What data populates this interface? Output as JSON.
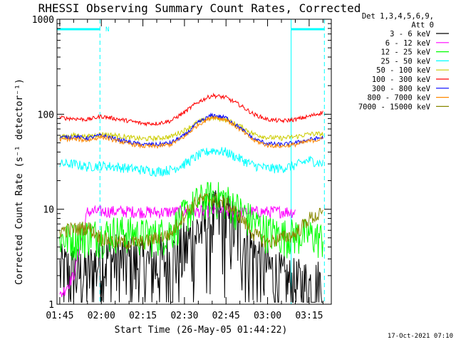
{
  "chart_data": {
    "type": "line",
    "title": "RHESSI Observing Summary Count Rates, Corrected",
    "xlabel": "Start Time (26-May-05 01:44:22)",
    "ylabel": "Corrected Count Rate (s⁻¹ detector⁻¹)",
    "yscale": "log",
    "ylim": [
      1,
      1000
    ],
    "xlim_minutes_after_0145": [
      -1,
      98
    ],
    "x_tick_labels": [
      "01:45",
      "02:00",
      "02:15",
      "02:30",
      "02:45",
      "03:00",
      "03:15"
    ],
    "x_tick_minutes": [
      0,
      15,
      30,
      45,
      60,
      75,
      90
    ],
    "y_tick_labels": [
      "1",
      "10",
      "100",
      "1000"
    ],
    "y_tick_values": [
      1,
      10,
      100,
      1000
    ],
    "legend_header": [
      "Det 1,3,4,5,6,9,",
      "Att 0"
    ],
    "legend_position": "right",
    "footer_timestamp": "17-Oct-2021 07:10",
    "night_flag": "N",
    "x_minutes": [
      0,
      5,
      10,
      15,
      20,
      25,
      30,
      35,
      40,
      45,
      50,
      55,
      60,
      65,
      70,
      75,
      80,
      85,
      90,
      95
    ],
    "series": [
      {
        "name": "3 - 6 keV",
        "color": "#000000",
        "noise": 0.9,
        "values": [
          2.3,
          2.2,
          2.1,
          3.2,
          3.0,
          2.8,
          2.7,
          2.7,
          3.0,
          4.0,
          6.0,
          8.5,
          8.0,
          6.0,
          3.5,
          2.5,
          1.8,
          1.6,
          1.6,
          1.6
        ]
      },
      {
        "name": "6 - 12 keV",
        "color": "#ff00ff",
        "noise": 0.15,
        "values": [
          1.2,
          2.0,
          9.4,
          9.5,
          9.5,
          9.5,
          9.4,
          9.3,
          9.4,
          9.5,
          9.5,
          9.6,
          9.5,
          9.4,
          9.4,
          9.4,
          9.5,
          9.4,
          null,
          null
        ]
      },
      {
        "name": "12 - 25 keV",
        "color": "#00ff00",
        "noise": 0.45,
        "values": [
          5.0,
          5.0,
          5.5,
          5.5,
          6.0,
          5.8,
          5.5,
          5.5,
          6.0,
          9.0,
          12.5,
          14.0,
          13.0,
          10.0,
          7.5,
          6.0,
          5.5,
          5.5,
          5.5,
          5.0
        ]
      },
      {
        "name": "25 - 50 keV",
        "color": "#00ffff",
        "noise": 0.12,
        "values": [
          30,
          30,
          28,
          29,
          28,
          27,
          26,
          25,
          26,
          30,
          37,
          42,
          40,
          34,
          29,
          27,
          27,
          29,
          33,
          30
        ]
      },
      {
        "name": "50 - 100 keV",
        "color": "#cccc00",
        "noise": 0.06,
        "values": [
          58,
          60,
          58,
          62,
          60,
          57,
          55,
          56,
          58,
          68,
          83,
          92,
          88,
          75,
          62,
          57,
          56,
          58,
          62,
          62
        ]
      },
      {
        "name": "100 - 300 keV",
        "color": "#ff0000",
        "noise": 0.05,
        "values": [
          92,
          90,
          88,
          95,
          90,
          85,
          80,
          80,
          85,
          105,
          135,
          158,
          150,
          125,
          100,
          88,
          85,
          88,
          95,
          105
        ]
      },
      {
        "name": "300 - 800 keV",
        "color": "#0000ff",
        "noise": 0.05,
        "values": [
          57,
          58,
          56,
          60,
          55,
          51,
          48,
          48,
          50,
          60,
          82,
          98,
          92,
          72,
          55,
          49,
          48,
          50,
          54,
          57
        ]
      },
      {
        "name": "800 - 7000 keV",
        "color": "#ff8800",
        "noise": 0.05,
        "values": [
          54,
          55,
          53,
          58,
          53,
          49,
          46,
          46,
          48,
          58,
          78,
          94,
          88,
          69,
          53,
          47,
          46,
          48,
          52,
          55
        ]
      },
      {
        "name": "7000 - 15000 keV",
        "color": "#888800",
        "noise": 0.18,
        "values": [
          6.0,
          6.2,
          6.5,
          5.0,
          4.5,
          4.5,
          4.5,
          5.0,
          5.5,
          9.0,
          12.5,
          13.0,
          11.5,
          8.5,
          5.5,
          4.5,
          5.0,
          5.5,
          8.0,
          9.0
        ]
      }
    ]
  }
}
